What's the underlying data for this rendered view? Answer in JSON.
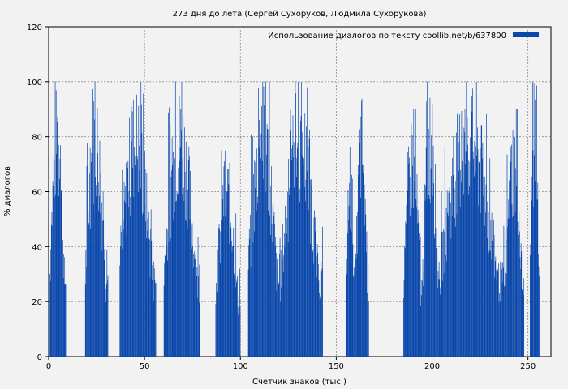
{
  "chart_data": {
    "type": "bar",
    "title": "273 дня до лета (Сергей Сухоруков, Людмила Сухорукова)",
    "xlabel": "Счетчик знаков (тыс.)",
    "ylabel": "% диалогов",
    "xlim": [
      0,
      262
    ],
    "ylim": [
      0,
      120
    ],
    "xticks": [
      0,
      50,
      100,
      150,
      200,
      250
    ],
    "yticks": [
      0,
      20,
      40,
      60,
      80,
      100,
      120
    ],
    "grid": true,
    "legend_position": "top-right",
    "series": [
      {
        "name": "Использование диалогов по тексту coollib.net/b/637800",
        "color": "#0a47ab",
        "segments": [
          {
            "x": [
              0.5,
              9
            ],
            "peak": 100
          },
          {
            "x": [
              19,
              31
            ],
            "peak": 100
          },
          {
            "x": [
              37,
              56
            ],
            "peak": 100
          },
          {
            "x": [
              60,
              79
            ],
            "peak": 100
          },
          {
            "x": [
              87,
              100
            ],
            "peak": 75
          },
          {
            "x": [
              104,
              121
            ],
            "peak": 100
          },
          {
            "x": [
              121,
              143
            ],
            "peak": 100
          },
          {
            "x": [
              155,
              160
            ],
            "peak": 80
          },
          {
            "x": [
              160,
              167
            ],
            "peak": 97
          },
          {
            "x": [
              185,
              195
            ],
            "peak": 90
          },
          {
            "x": [
              195,
              204
            ],
            "peak": 100
          },
          {
            "x": [
              204,
              238
            ],
            "peak": 100
          },
          {
            "x": [
              238,
              248
            ],
            "peak": 90
          },
          {
            "x": [
              251,
              256
            ],
            "peak": 100
          }
        ]
      }
    ]
  }
}
